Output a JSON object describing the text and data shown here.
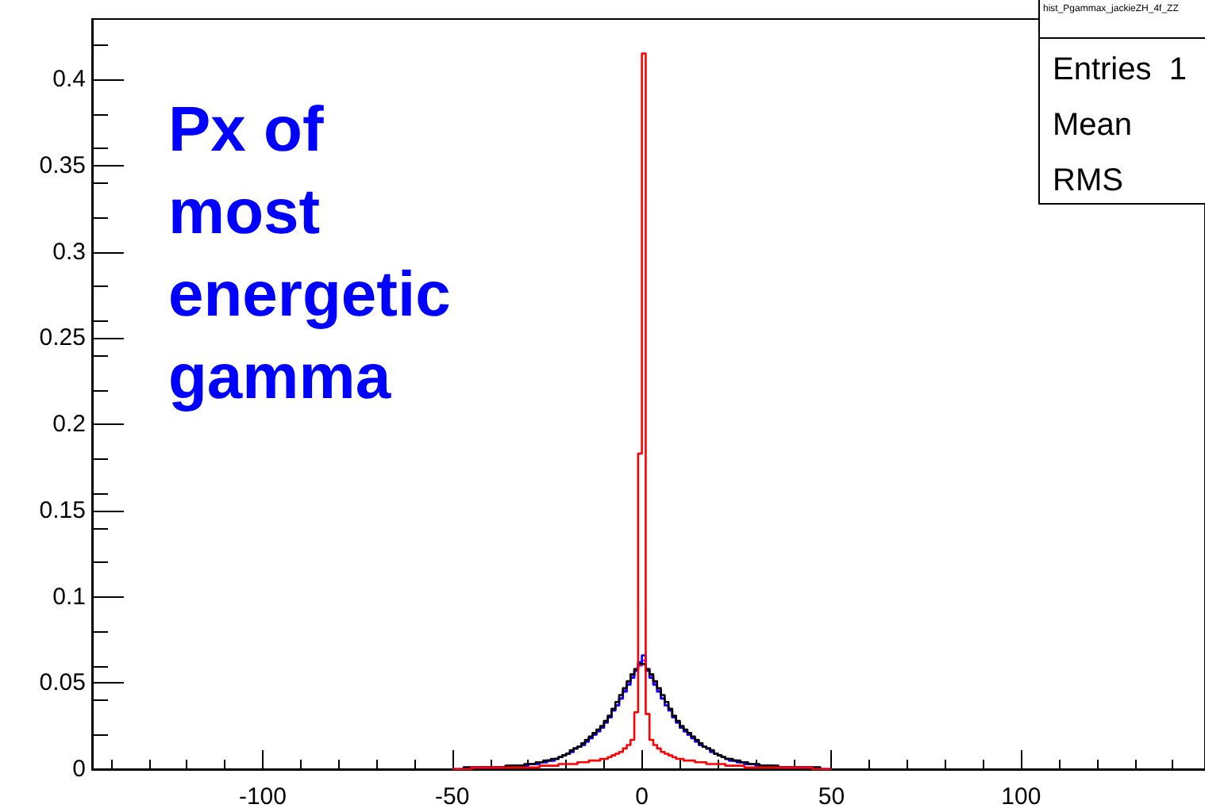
{
  "chart_data": {
    "type": "histogram",
    "title": "hist_Pgammax_jackieZH_4f_ZZ",
    "annotations": [
      "Px of\nmost\nenergetic\ngamma",
      "Entries  1",
      "Mean",
      "RMS"
    ],
    "bins": [
      -50,
      -49,
      -48,
      -47,
      -46,
      -45,
      -44,
      -43,
      -42,
      -41,
      -40,
      -39,
      -38,
      -37,
      -36,
      -35,
      -34,
      -33,
      -32,
      -31,
      -30,
      -29,
      -28,
      -27,
      -26,
      -25,
      -24,
      -23,
      -22,
      -21,
      -20,
      -19,
      -18,
      -17,
      -16,
      -15,
      -14,
      -13,
      -12,
      -11,
      -10,
      -9,
      -8,
      -7,
      -6,
      -5,
      -4,
      -3,
      -2,
      -1,
      0,
      1,
      2,
      3,
      4,
      5,
      6,
      7,
      8,
      9,
      10,
      11,
      12,
      13,
      14,
      15,
      16,
      17,
      18,
      19,
      20,
      21,
      22,
      23,
      24,
      25,
      26,
      27,
      28,
      29,
      30,
      31,
      32,
      33,
      34,
      35,
      36,
      37,
      38,
      39,
      40,
      41,
      42,
      43,
      44,
      45,
      46,
      47,
      48,
      49,
      50
    ],
    "series": [
      {
        "color": "#ff00ff",
        "values": [
          0,
          0,
          0,
          0.001,
          0.001,
          0.001,
          0.001,
          0.001,
          0.001,
          0.001,
          0.001,
          0.001,
          0.001,
          0.001,
          0.001,
          0.002,
          0.002,
          0.002,
          0.002,
          0.002,
          0.003,
          0.003,
          0.003,
          0.004,
          0.004,
          0.005,
          0.005,
          0.006,
          0.007,
          0.008,
          0.009,
          0.01,
          0.012,
          0.013,
          0.014,
          0.016,
          0.018,
          0.02,
          0.022,
          0.024,
          0.027,
          0.03,
          0.034,
          0.037,
          0.041,
          0.046,
          0.05,
          0.054,
          0.058,
          0.06,
          0.063,
          0.058,
          0.054,
          0.05,
          0.046,
          0.041,
          0.037,
          0.034,
          0.03,
          0.027,
          0.024,
          0.022,
          0.02,
          0.018,
          0.016,
          0.014,
          0.013,
          0.012,
          0.01,
          0.009,
          0.008,
          0.007,
          0.006,
          0.005,
          0.005,
          0.004,
          0.004,
          0.003,
          0.003,
          0.003,
          0.002,
          0.002,
          0.002,
          0.002,
          0.002,
          0.001,
          0.001,
          0.001,
          0.001,
          0.001,
          0.001,
          0.001,
          0.001,
          0.001,
          0.001,
          0.001,
          0.001,
          0,
          0,
          0
        ]
      },
      {
        "color": "#0000ff",
        "values": [
          0,
          0,
          0,
          0.001,
          0.001,
          0.001,
          0.001,
          0.001,
          0.001,
          0.001,
          0.001,
          0.001,
          0.001,
          0.001,
          0.001,
          0.002,
          0.002,
          0.002,
          0.002,
          0.002,
          0.003,
          0.003,
          0.003,
          0.004,
          0.004,
          0.005,
          0.005,
          0.006,
          0.007,
          0.008,
          0.009,
          0.01,
          0.012,
          0.013,
          0.014,
          0.016,
          0.018,
          0.02,
          0.022,
          0.024,
          0.027,
          0.03,
          0.034,
          0.037,
          0.041,
          0.045,
          0.049,
          0.053,
          0.057,
          0.062,
          0.066,
          0.057,
          0.053,
          0.049,
          0.045,
          0.041,
          0.037,
          0.034,
          0.03,
          0.027,
          0.024,
          0.022,
          0.02,
          0.018,
          0.016,
          0.014,
          0.013,
          0.012,
          0.01,
          0.009,
          0.008,
          0.007,
          0.006,
          0.005,
          0.005,
          0.004,
          0.004,
          0.003,
          0.003,
          0.003,
          0.002,
          0.002,
          0.002,
          0.002,
          0.002,
          0.001,
          0.001,
          0.001,
          0.001,
          0.001,
          0.001,
          0.001,
          0.001,
          0.001,
          0.001,
          0.001,
          0.001,
          0,
          0,
          0
        ]
      },
      {
        "color": "#000000",
        "values": [
          0,
          0,
          0,
          0.001,
          0.001,
          0.001,
          0.001,
          0.001,
          0.001,
          0.001,
          0.001,
          0.001,
          0.001,
          0.001,
          0.002,
          0.002,
          0.002,
          0.002,
          0.002,
          0.003,
          0.003,
          0.003,
          0.004,
          0.004,
          0.005,
          0.005,
          0.006,
          0.006,
          0.007,
          0.008,
          0.009,
          0.011,
          0.012,
          0.013,
          0.015,
          0.017,
          0.019,
          0.021,
          0.023,
          0.025,
          0.028,
          0.031,
          0.035,
          0.039,
          0.043,
          0.047,
          0.051,
          0.055,
          0.058,
          0.061,
          0.061,
          0.058,
          0.055,
          0.051,
          0.047,
          0.043,
          0.039,
          0.035,
          0.031,
          0.028,
          0.025,
          0.023,
          0.021,
          0.019,
          0.017,
          0.015,
          0.013,
          0.012,
          0.011,
          0.009,
          0.008,
          0.007,
          0.006,
          0.006,
          0.005,
          0.005,
          0.004,
          0.004,
          0.003,
          0.003,
          0.003,
          0.002,
          0.002,
          0.002,
          0.002,
          0.002,
          0.001,
          0.001,
          0.001,
          0.001,
          0.001,
          0.001,
          0.001,
          0.001,
          0.001,
          0.001,
          0.001,
          0,
          0,
          0
        ]
      },
      {
        "color": "#ff0000",
        "values": [
          0,
          0,
          0,
          0,
          0,
          0.001,
          0.001,
          0.001,
          0.001,
          0.001,
          0.001,
          0.001,
          0.001,
          0.001,
          0.001,
          0.001,
          0.001,
          0.001,
          0.001,
          0.001,
          0.001,
          0.001,
          0.001,
          0.002,
          0.002,
          0.002,
          0.002,
          0.002,
          0.003,
          0.003,
          0.003,
          0.003,
          0.003,
          0.004,
          0.004,
          0.004,
          0.005,
          0.005,
          0.005,
          0.006,
          0.006,
          0.007,
          0.008,
          0.009,
          0.01,
          0.012,
          0.014,
          0.017,
          0.033,
          0.183,
          0.415,
          0.032,
          0.017,
          0.014,
          0.012,
          0.01,
          0.009,
          0.008,
          0.007,
          0.006,
          0.006,
          0.005,
          0.005,
          0.005,
          0.004,
          0.004,
          0.004,
          0.003,
          0.003,
          0.003,
          0.003,
          0.003,
          0.002,
          0.002,
          0.002,
          0.002,
          0.002,
          0.001,
          0.001,
          0.001,
          0.001,
          0.001,
          0.001,
          0.001,
          0.001,
          0.001,
          0.001,
          0.001,
          0.001,
          0.001,
          0.001,
          0.001,
          0.001,
          0.001,
          0.001,
          0,
          0,
          0,
          0,
          0
        ]
      }
    ],
    "xlim": [
      -145,
      148.5
    ],
    "xticks": [
      -100,
      -50,
      0,
      50,
      100
    ],
    "ylim": [
      0,
      0.435
    ],
    "yticks": [
      0,
      0.05,
      0.1,
      0.15,
      0.2,
      0.25,
      0.3,
      0.35,
      0.4
    ]
  }
}
